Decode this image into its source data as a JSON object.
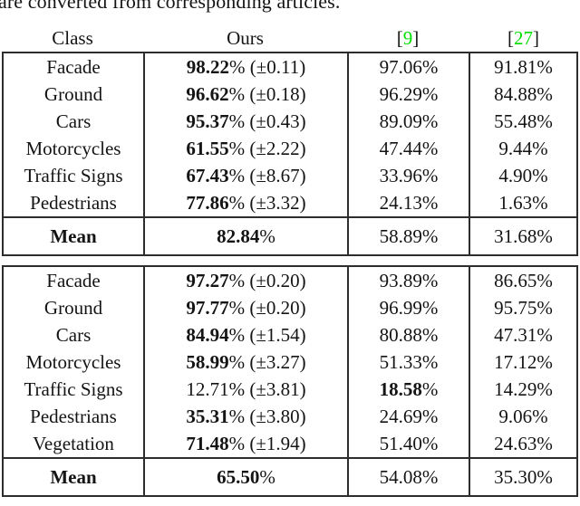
{
  "colors": {
    "citation_green": "#00dc00",
    "text": "#141414",
    "border": "#2d2d2d"
  },
  "caption_fragment": "are converted from corresponding articles.",
  "header": {
    "col_class": "Class",
    "col_ours": "Ours",
    "bracket_open": "[",
    "bracket_close": "]",
    "ref9_num": "9",
    "ref27_num": "27"
  },
  "sections": [
    {
      "rows": [
        {
          "class": "Facade",
          "ours_value": "98.22",
          "ours_rest": "% (±0.11)",
          "ours_bold": true,
          "ref9_value": "97.06",
          "ref9_rest": "%",
          "ref9_bold": false,
          "ref27": "91.81%"
        },
        {
          "class": "Ground",
          "ours_value": "96.62",
          "ours_rest": "% (±0.18)",
          "ours_bold": true,
          "ref9_value": "96.29",
          "ref9_rest": "%",
          "ref9_bold": false,
          "ref27": "84.88%"
        },
        {
          "class": "Cars",
          "ours_value": "95.37",
          "ours_rest": "% (±0.43)",
          "ours_bold": true,
          "ref9_value": "89.09",
          "ref9_rest": "%",
          "ref9_bold": false,
          "ref27": "55.48%"
        },
        {
          "class": "Motorcycles",
          "ours_value": "61.55",
          "ours_rest": "% (±2.22)",
          "ours_bold": true,
          "ref9_value": "47.44",
          "ref9_rest": "%",
          "ref9_bold": false,
          "ref27": "9.44%"
        },
        {
          "class": "Traffic Signs",
          "ours_value": "67.43",
          "ours_rest": "% (±8.67)",
          "ours_bold": true,
          "ref9_value": "33.96",
          "ref9_rest": "%",
          "ref9_bold": false,
          "ref27": "4.90%"
        },
        {
          "class": "Pedestrians",
          "ours_value": "77.86",
          "ours_rest": "% (±3.32)",
          "ours_bold": true,
          "ref9_value": "24.13",
          "ref9_rest": "%",
          "ref9_bold": false,
          "ref27": "1.63%"
        }
      ],
      "mean": {
        "label": "Mean",
        "ours_value": "82.84",
        "ours_rest": "%",
        "ours_bold": true,
        "ref9": "58.89%",
        "ref27": "31.68%"
      }
    },
    {
      "rows": [
        {
          "class": "Facade",
          "ours_value": "97.27",
          "ours_rest": "% (±0.20)",
          "ours_bold": true,
          "ref9_value": "93.89",
          "ref9_rest": "%",
          "ref9_bold": false,
          "ref27": "86.65%"
        },
        {
          "class": "Ground",
          "ours_value": "97.77",
          "ours_rest": "% (±0.20)",
          "ours_bold": true,
          "ref9_value": "96.99",
          "ref9_rest": "%",
          "ref9_bold": false,
          "ref27": "95.75%"
        },
        {
          "class": "Cars",
          "ours_value": "84.94",
          "ours_rest": "% (±1.54)",
          "ours_bold": true,
          "ref9_value": "80.88",
          "ref9_rest": "%",
          "ref9_bold": false,
          "ref27": "47.31%"
        },
        {
          "class": "Motorcycles",
          "ours_value": "58.99",
          "ours_rest": "% (±3.27)",
          "ours_bold": true,
          "ref9_value": "51.33",
          "ref9_rest": "%",
          "ref9_bold": false,
          "ref27": "17.12%"
        },
        {
          "class": "Traffic Signs",
          "ours_value": "12.71",
          "ours_rest": "% (±3.81)",
          "ours_bold": false,
          "ref9_value": "18.58",
          "ref9_rest": "%",
          "ref9_bold": true,
          "ref27": "14.29%"
        },
        {
          "class": "Pedestrians",
          "ours_value": "35.31",
          "ours_rest": "% (±3.80)",
          "ours_bold": true,
          "ref9_value": "24.69",
          "ref9_rest": "%",
          "ref9_bold": false,
          "ref27": "9.06%"
        },
        {
          "class": "Vegetation",
          "ours_value": "71.48",
          "ours_rest": "% (±1.94)",
          "ours_bold": true,
          "ref9_value": "51.40",
          "ref9_rest": "%",
          "ref9_bold": false,
          "ref27": "24.63%"
        }
      ],
      "mean": {
        "label": "Mean",
        "ours_value": "65.50",
        "ours_rest": "%",
        "ours_bold": true,
        "ref9": "54.08%",
        "ref27": "35.30%"
      }
    }
  ]
}
